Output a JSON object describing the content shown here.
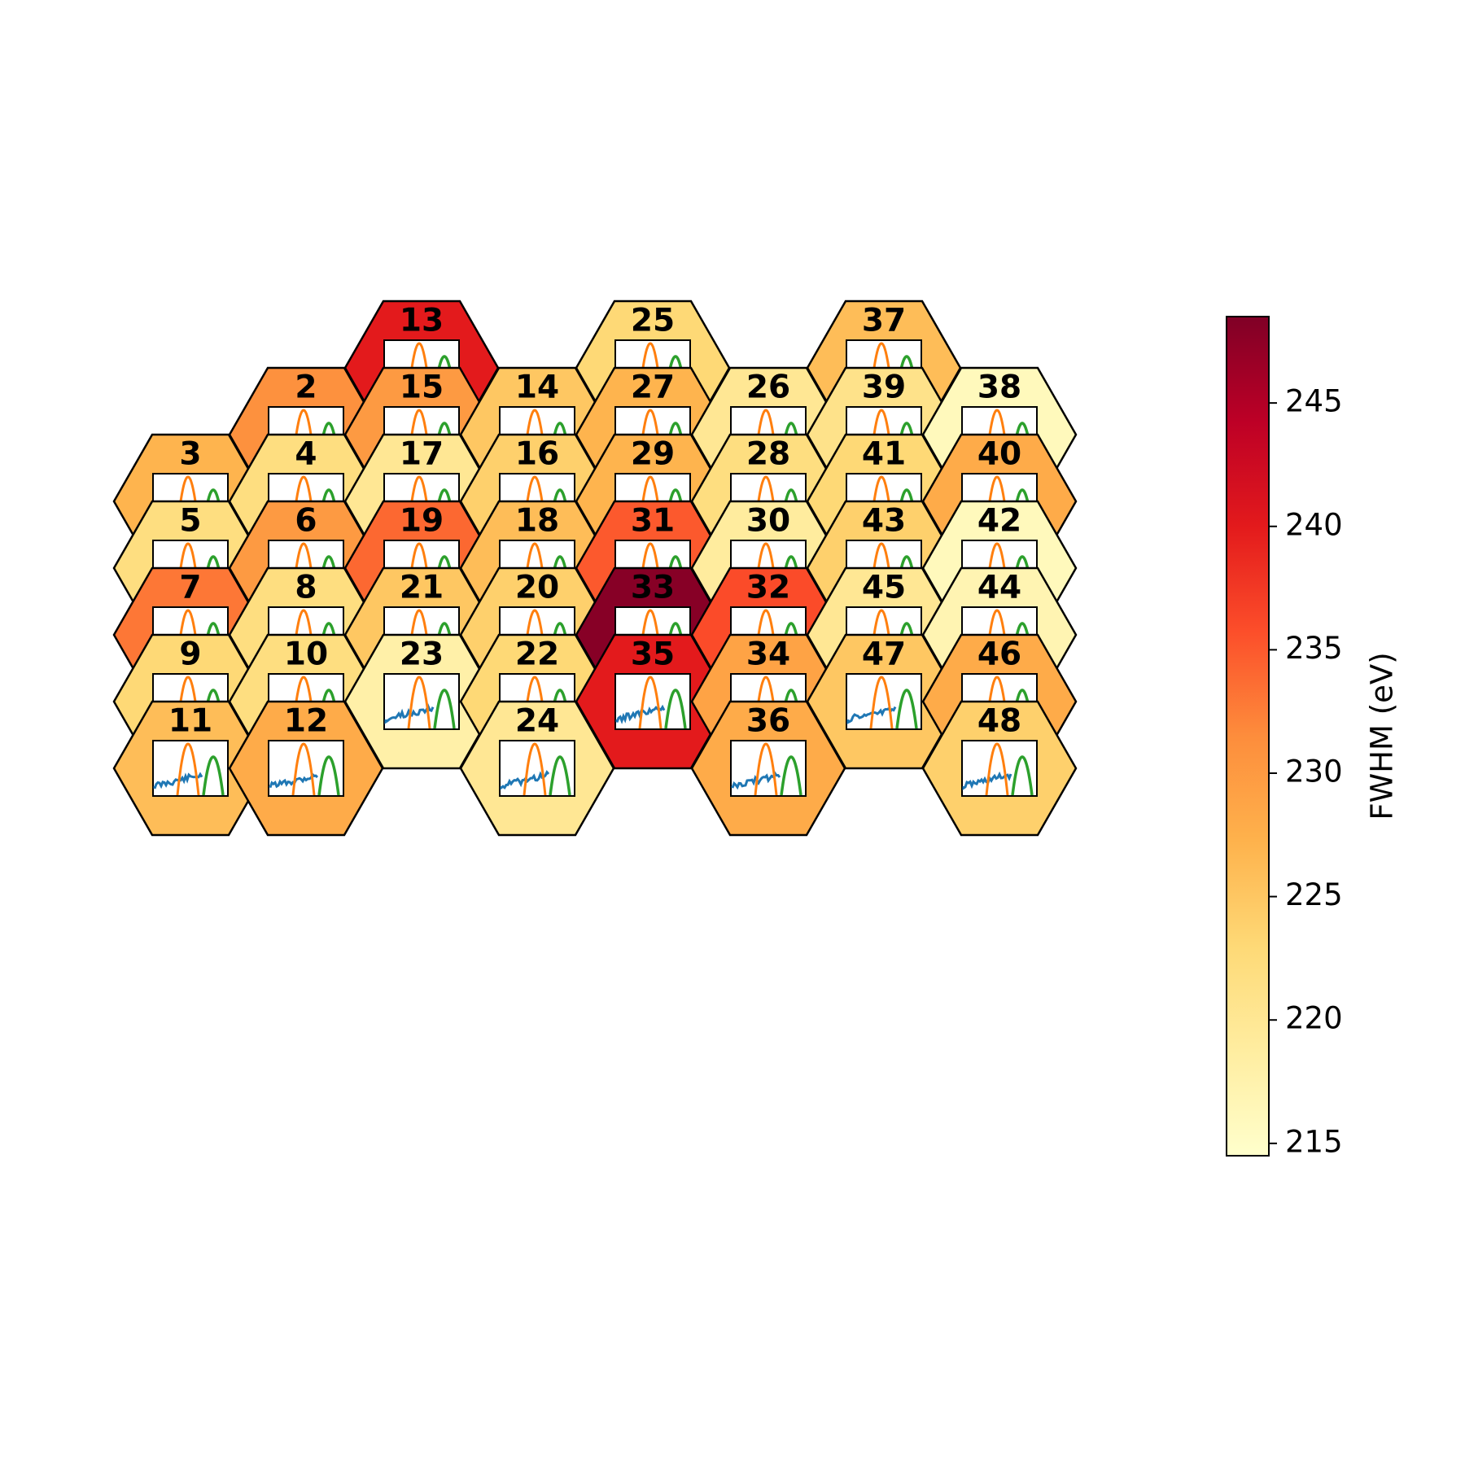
{
  "chart_data": {
    "type": "heatmap",
    "layout": "hexagonal detector map",
    "colorbar": {
      "label": "FWHM (eV)",
      "range": [
        214.5,
        248.5
      ],
      "ticks": [
        215,
        220,
        225,
        230,
        235,
        240,
        245
      ],
      "colormap": [
        "#ffffcc",
        "#ffeda0",
        "#fed976",
        "#feb24c",
        "#fd8d3c",
        "#fc4e2a",
        "#e31a1c",
        "#bd0026",
        "#800026"
      ]
    },
    "inset_colors": {
      "spectrum": "#1f77b4",
      "peak1": "#ff7f0e",
      "peak2": "#2ca02c"
    },
    "columns": [
      {
        "col": 0,
        "top_row": 2,
        "ids": [
          3,
          5,
          7,
          9,
          11
        ]
      },
      {
        "col": 1,
        "top_row": 1,
        "ids": [
          2,
          4,
          6,
          8,
          10,
          12
        ]
      },
      {
        "col": 2,
        "top_row": 0,
        "ids": [
          13,
          15,
          17,
          19,
          21,
          23
        ]
      },
      {
        "col": 3,
        "top_row": 1,
        "ids": [
          14,
          16,
          18,
          20,
          22,
          24
        ]
      },
      {
        "col": 4,
        "top_row": 0,
        "ids": [
          25,
          27,
          29,
          31,
          33,
          35
        ]
      },
      {
        "col": 5,
        "top_row": 1,
        "ids": [
          26,
          28,
          30,
          32,
          34,
          36
        ]
      },
      {
        "col": 6,
        "top_row": 0,
        "ids": [
          37,
          39,
          41,
          43,
          45,
          47
        ]
      },
      {
        "col": 7,
        "top_row": 1,
        "ids": [
          38,
          40,
          42,
          44,
          46,
          48
        ]
      }
    ],
    "values": {
      "2": 231,
      "3": 227,
      "4": 222,
      "5": 222,
      "6": 230,
      "7": 233,
      "8": 222,
      "9": 223,
      "10": 222,
      "11": 226,
      "12": 228,
      "13": 240,
      "14": 225,
      "15": 230,
      "16": 224,
      "17": 220,
      "18": 226,
      "19": 234,
      "20": 224,
      "21": 225,
      "22": 223,
      "23": 218,
      "24": 220,
      "25": 223,
      "26": 220,
      "27": 227,
      "28": 222,
      "29": 227,
      "30": 219,
      "31": 235,
      "32": 236,
      "33": 248,
      "34": 229,
      "35": 240,
      "36": 228,
      "37": 226,
      "38": 216,
      "39": 221,
      "40": 228,
      "41": 223,
      "42": 216,
      "43": 224,
      "44": 217,
      "45": 220,
      "46": 228,
      "47": 225,
      "48": 224
    }
  }
}
